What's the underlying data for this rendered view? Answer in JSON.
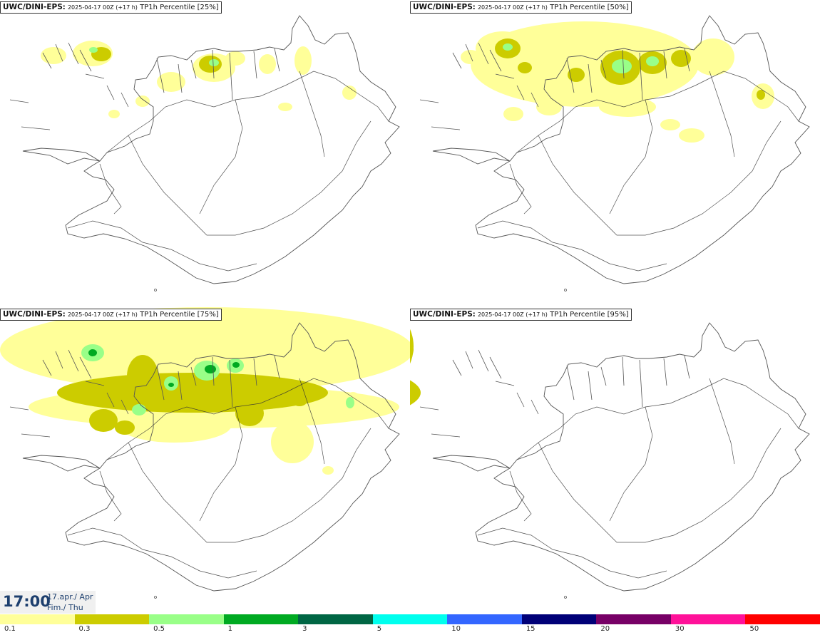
{
  "panels": [
    {
      "model": "UWC/DINI-EPS",
      "run": "2025-04-17 00Z (+17 h)",
      "field": "TP1h Percentile [25%]",
      "level": 0
    },
    {
      "model": "UWC/DINI-EPS",
      "run": "2025-04-17 00Z (+17 h)",
      "field": "TP1h Percentile [50%]",
      "level": 1
    },
    {
      "model": "UWC/DINI-EPS",
      "run": "2025-04-17 00Z (+17 h)",
      "field": "TP1h Percentile [75%]",
      "level": 2
    },
    {
      "model": "UWC/DINI-EPS",
      "run": "2025-04-17 00Z (+17 h)",
      "field": "TP1h Percentile [95%]",
      "level": 3
    }
  ],
  "valid_time": {
    "clock": "17:00",
    "date": "17.apr./ Apr",
    "weekday": "Fim./ Thu"
  },
  "legend": {
    "colors": [
      "#ffff99",
      "#cccc00",
      "#99ff88",
      "#00aa22",
      "#006644",
      "#00ffee",
      "#3366ff",
      "#000077",
      "#770066",
      "#ff1199",
      "#ff0000"
    ],
    "ticks": [
      "0.1",
      "0.3",
      "0.5",
      "1",
      "3",
      "5",
      "10",
      "15",
      "20",
      "30",
      "50"
    ]
  },
  "map_style": {
    "coast": "#555555",
    "roads": "#333333",
    "background": "#ffffff"
  }
}
